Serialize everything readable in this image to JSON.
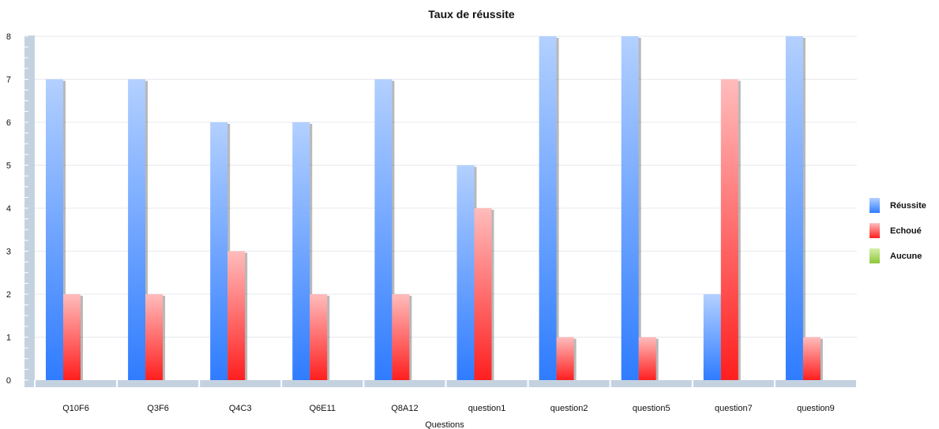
{
  "chart_data": {
    "type": "bar",
    "title": "Taux de réussite",
    "xlabel": "Questions",
    "ylabel": "",
    "ylim": [
      0,
      8
    ],
    "yticks": [
      0,
      1,
      2,
      3,
      4,
      5,
      6,
      7,
      8
    ],
    "grid": true,
    "legend_position": "right",
    "categories": [
      "Q10F6",
      "Q3F6",
      "Q4C3",
      "Q6E11",
      "Q8A12",
      "question1",
      "question2",
      "question5",
      "question7",
      "question9"
    ],
    "series": [
      {
        "name": "Réussite",
        "color": "#3a86ff",
        "values": [
          7,
          7,
          6,
          6,
          7,
          5,
          8,
          8,
          2,
          8
        ]
      },
      {
        "name": "Echoué",
        "color": "#ff3030",
        "values": [
          2,
          2,
          3,
          2,
          2,
          4,
          1,
          1,
          7,
          1
        ]
      },
      {
        "name": "Aucune",
        "color": "#9bd13c",
        "values": [
          0,
          0,
          0,
          0,
          0,
          0,
          0,
          0,
          0,
          0
        ]
      }
    ]
  }
}
